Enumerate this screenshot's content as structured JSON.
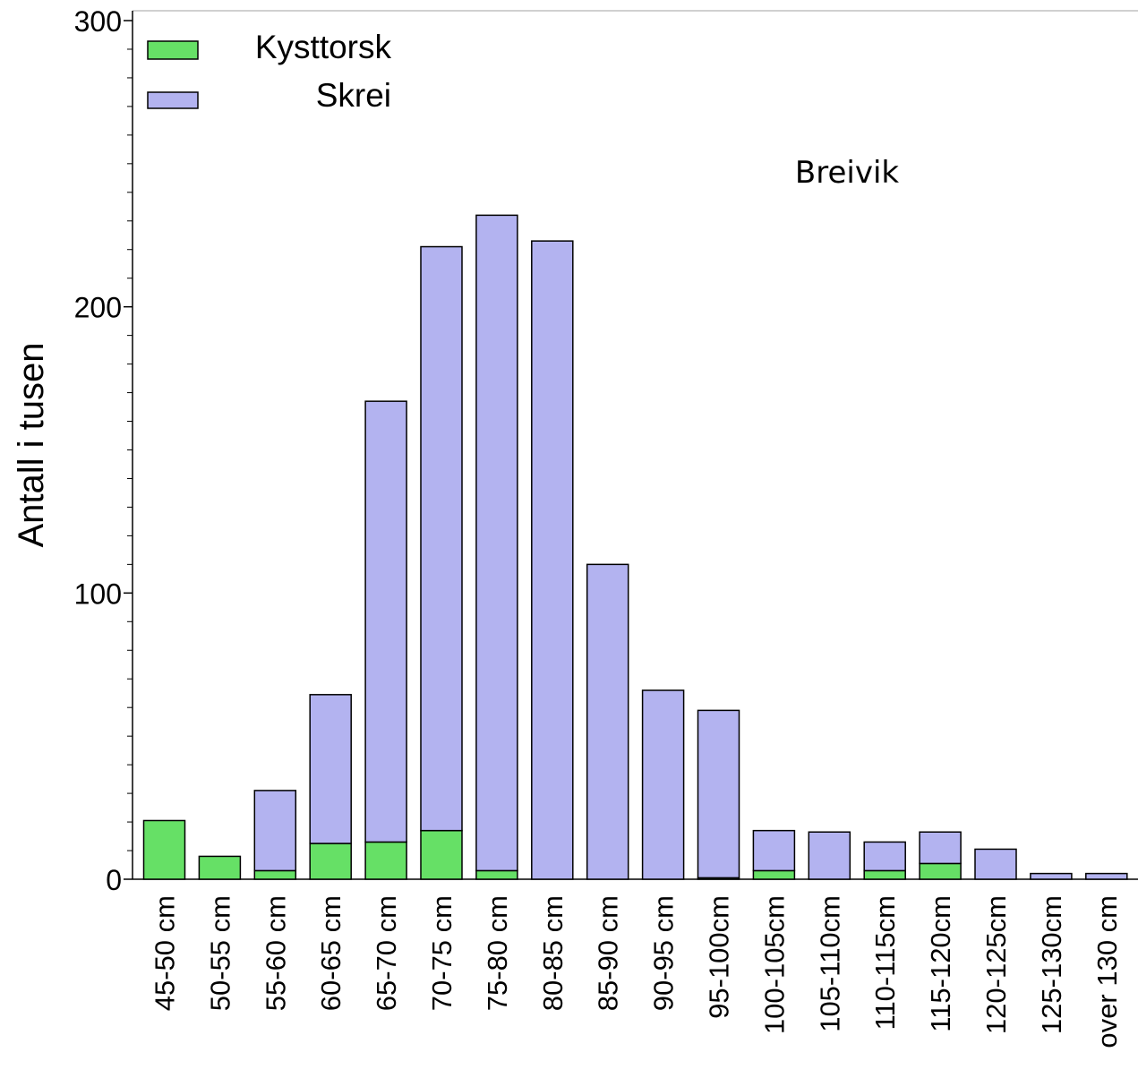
{
  "chart_data": {
    "type": "bar",
    "stacked": true,
    "annotation": "Breivik",
    "ylabel": "Antall i tusen",
    "xlabel": "",
    "ylim": [
      0,
      300
    ],
    "yticks": [
      0,
      100,
      200,
      300
    ],
    "legend_position": "top-left",
    "grid": false,
    "categories": [
      "45-50 cm",
      "50-55 cm",
      "55-60 cm",
      "60-65 cm",
      "65-70 cm",
      "70-75 cm",
      "75-80 cm",
      "80-85 cm",
      "85-90 cm",
      "90-95 cm",
      "95-100cm",
      "100-105cm",
      "105-110cm",
      "110-115cm",
      "115-120cm",
      "120-125cm",
      "125-130cm",
      "over 130 cm"
    ],
    "series": [
      {
        "name": "Kysttorsk",
        "color": "#66e066",
        "values": [
          20.5,
          8,
          3,
          12.5,
          13,
          17,
          3,
          0,
          0,
          0,
          0.5,
          3,
          0,
          3,
          5.5,
          0,
          0,
          0
        ]
      },
      {
        "name": "Skrei",
        "color": "#b3b3f0",
        "values": [
          0,
          0,
          28,
          52,
          154,
          204,
          229,
          223,
          110,
          66,
          58.5,
          14,
          16.5,
          10,
          11,
          10.5,
          2,
          2
        ]
      }
    ]
  }
}
